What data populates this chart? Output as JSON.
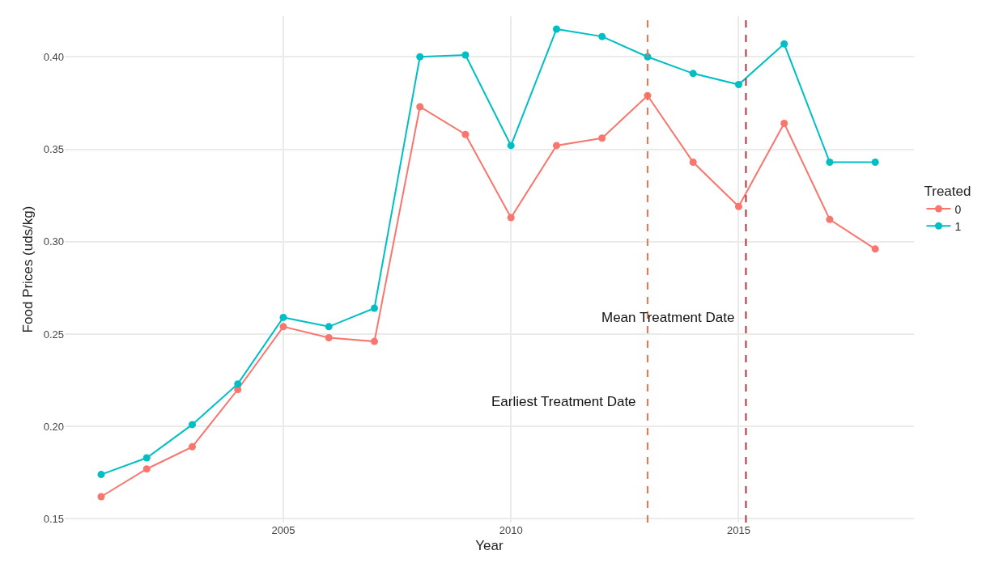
{
  "chart_data": {
    "type": "line",
    "xlabel": "Year",
    "ylabel": "Food Prices (uds/kg)",
    "legend_title": "Treated",
    "legend": "right",
    "grid": true,
    "marker": "circle",
    "line_style": "solid",
    "x": [
      2001,
      2002,
      2003,
      2004,
      2005,
      2006,
      2007,
      2008,
      2009,
      2010,
      2011,
      2012,
      2013,
      2014,
      2015,
      2016,
      2017,
      2018
    ],
    "series": [
      {
        "name": "0",
        "color": "#f8766d",
        "values": [
          0.162,
          0.177,
          0.189,
          0.22,
          0.254,
          0.248,
          0.246,
          0.373,
          0.358,
          0.313,
          0.352,
          0.356,
          0.379,
          0.343,
          0.319,
          0.364,
          0.312,
          0.296
        ]
      },
      {
        "name": "1",
        "color": "#00bfc4",
        "values": [
          0.174,
          0.183,
          0.201,
          0.223,
          0.259,
          0.254,
          0.264,
          0.4,
          0.401,
          0.352,
          0.415,
          0.411,
          0.4,
          0.391,
          0.385,
          0.407,
          0.343,
          0.343
        ]
      }
    ],
    "xlim": [
      2000.2,
      2018.85
    ],
    "xticks": [
      2005,
      2010,
      2015
    ],
    "ylim": [
      0.148,
      0.422
    ],
    "yticks": [
      {
        "value": 0.15,
        "label": "0.15"
      },
      {
        "value": 0.2,
        "label": "0.20"
      },
      {
        "value": 0.25,
        "label": "0.25"
      },
      {
        "value": 0.3,
        "label": "0.30"
      },
      {
        "value": 0.35,
        "label": "0.35"
      },
      {
        "value": 0.4,
        "label": "0.40"
      }
    ],
    "ref_lines": [
      {
        "axis": "x",
        "value": 2013,
        "label": "Earliest Treatment Date",
        "color": "#f4714f",
        "line_style": "dashed"
      },
      {
        "axis": "x",
        "value": 2015.16,
        "label": "Mean Treatment Date",
        "color": "#b5333f",
        "line_style": "dashed"
      }
    ]
  }
}
